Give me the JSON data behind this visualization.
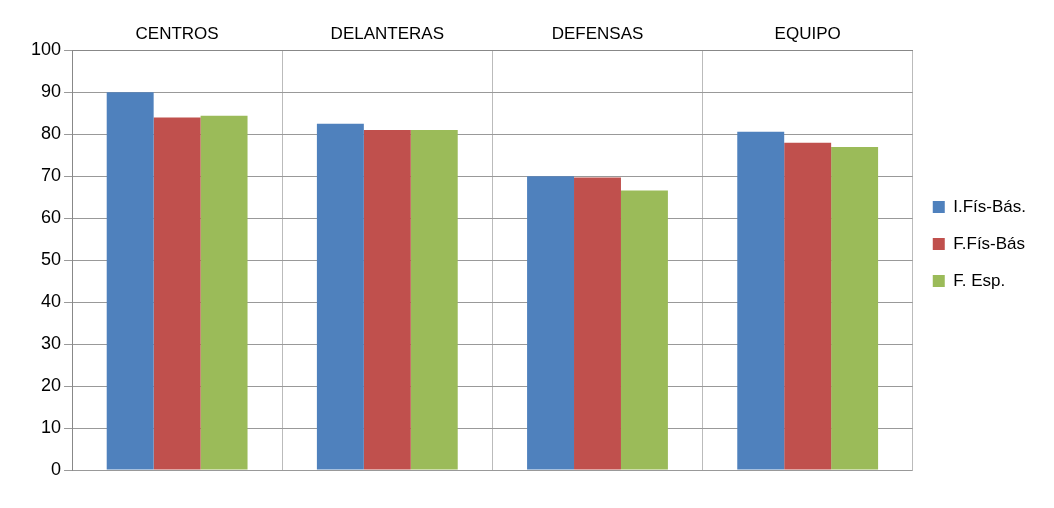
{
  "chart_data": {
    "type": "bar",
    "categories": [
      "CENTROS",
      "DELANTERAS",
      "DEFENSAS",
      "EQUIPO"
    ],
    "series": [
      {
        "name": "I.Fís-Bás.",
        "color": "#4f81bd",
        "values": [
          90,
          82.5,
          70,
          80.6
        ]
      },
      {
        "name": "F.Fís-Bás",
        "color": "#c0504d",
        "values": [
          84,
          81,
          69.7,
          78
        ]
      },
      {
        "name": "F. Esp.",
        "color": "#9bbb59",
        "values": [
          84.4,
          81,
          66.6,
          77
        ]
      }
    ],
    "ylim": [
      0,
      100
    ],
    "yticks": [
      0,
      10,
      20,
      30,
      40,
      50,
      60,
      70,
      80,
      90,
      100
    ],
    "grid": true,
    "legend": "right"
  }
}
